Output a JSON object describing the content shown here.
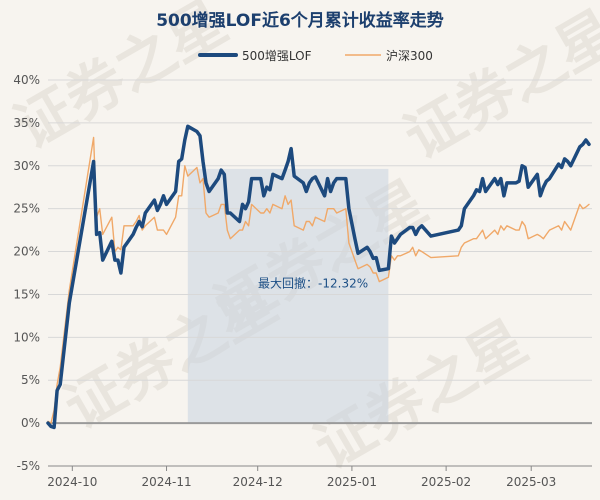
{
  "watermark": "证券之星",
  "chart_data": {
    "type": "line",
    "title": "500增强LOF近6个月累计收益率走势",
    "xlabel": "",
    "ylabel": "",
    "x_ticks": [
      "2024-10",
      "2024-11",
      "2024-12",
      "2025-01",
      "2025-02",
      "2025-03"
    ],
    "y_ticks": [
      "40%",
      "35%",
      "30%",
      "25%",
      "20%",
      "15%",
      "10%",
      "5%",
      "0%",
      "-5%"
    ],
    "ylim": [
      -5,
      40
    ],
    "grid": true,
    "legend_position": "top-center",
    "x_range": [
      "2024-09-23",
      "2025-03-21"
    ],
    "annotation": {
      "text": "最大回撤：-12.32%",
      "shaded_from": "2024-11-08",
      "shaded_to": "2025-01-13"
    },
    "series": [
      {
        "name": "500增强LOF",
        "color": "#1d4a7e",
        "points": [
          [
            "2024-09-23",
            0.0
          ],
          [
            "2024-09-24",
            -0.4
          ],
          [
            "2024-09-25",
            -0.5
          ],
          [
            "2024-09-26",
            3.8
          ],
          [
            "2024-09-27",
            4.5
          ],
          [
            "2024-09-30",
            14.0
          ],
          [
            "2024-10-08",
            30.5
          ],
          [
            "2024-10-09",
            22.0
          ],
          [
            "2024-10-10",
            22.2
          ],
          [
            "2024-10-11",
            19.0
          ],
          [
            "2024-10-14",
            21.2
          ],
          [
            "2024-10-15",
            19.0
          ],
          [
            "2024-10-16",
            19.0
          ],
          [
            "2024-10-17",
            17.5
          ],
          [
            "2024-10-18",
            20.5
          ],
          [
            "2024-10-21",
            22.0
          ],
          [
            "2024-10-22",
            22.8
          ],
          [
            "2024-10-23",
            23.5
          ],
          [
            "2024-10-24",
            22.9
          ],
          [
            "2024-10-25",
            24.5
          ],
          [
            "2024-10-28",
            26.0
          ],
          [
            "2024-10-29",
            24.8
          ],
          [
            "2024-10-30",
            25.5
          ],
          [
            "2024-10-31",
            26.5
          ],
          [
            "2024-11-01",
            25.5
          ],
          [
            "2024-11-04",
            27.0
          ],
          [
            "2024-11-05",
            30.5
          ],
          [
            "2024-11-06",
            30.8
          ],
          [
            "2024-11-07",
            33.0
          ],
          [
            "2024-11-08",
            34.6
          ],
          [
            "2024-11-11",
            34.0
          ],
          [
            "2024-11-12",
            33.5
          ],
          [
            "2024-11-13",
            30.5
          ],
          [
            "2024-11-14",
            28.0
          ],
          [
            "2024-11-15",
            27.0
          ],
          [
            "2024-11-18",
            28.5
          ],
          [
            "2024-11-19",
            29.5
          ],
          [
            "2024-11-20",
            29.0
          ],
          [
            "2024-11-21",
            24.5
          ],
          [
            "2024-11-22",
            24.5
          ],
          [
            "2024-11-25",
            23.5
          ],
          [
            "2024-11-26",
            25.5
          ],
          [
            "2024-11-27",
            25.0
          ],
          [
            "2024-11-28",
            25.8
          ],
          [
            "2024-11-29",
            28.5
          ],
          [
            "2024-12-02",
            28.5
          ],
          [
            "2024-12-03",
            26.5
          ],
          [
            "2024-12-04",
            27.5
          ],
          [
            "2024-12-05",
            27.2
          ],
          [
            "2024-12-06",
            29.0
          ],
          [
            "2024-12-09",
            28.5
          ],
          [
            "2024-12-10",
            29.5
          ],
          [
            "2024-12-11",
            30.5
          ],
          [
            "2024-12-12",
            32.0
          ],
          [
            "2024-12-13",
            28.8
          ],
          [
            "2024-12-16",
            28.0
          ],
          [
            "2024-12-17",
            27.0
          ],
          [
            "2024-12-18",
            28.0
          ],
          [
            "2024-12-19",
            28.5
          ],
          [
            "2024-12-20",
            28.7
          ],
          [
            "2024-12-23",
            26.5
          ],
          [
            "2024-12-24",
            28.5
          ],
          [
            "2024-12-25",
            27.0
          ],
          [
            "2024-12-26",
            28.0
          ],
          [
            "2024-12-27",
            28.5
          ],
          [
            "2024-12-30",
            28.5
          ],
          [
            "2024-12-31",
            25.0
          ],
          [
            "2025-01-02",
            21.5
          ],
          [
            "2025-01-03",
            19.8
          ],
          [
            "2025-01-06",
            20.5
          ],
          [
            "2025-01-07",
            20.0
          ],
          [
            "2025-01-08",
            19.2
          ],
          [
            "2025-01-09",
            19.3
          ],
          [
            "2025-01-10",
            17.8
          ],
          [
            "2025-01-13",
            18.0
          ],
          [
            "2025-01-14",
            21.8
          ],
          [
            "2025-01-15",
            21.0
          ],
          [
            "2025-01-16",
            21.5
          ],
          [
            "2025-01-17",
            22.0
          ],
          [
            "2025-01-20",
            22.8
          ],
          [
            "2025-01-21",
            22.8
          ],
          [
            "2025-01-22",
            22.0
          ],
          [
            "2025-01-23",
            22.7
          ],
          [
            "2025-01-24",
            23.0
          ],
          [
            "2025-01-27",
            21.8
          ],
          [
            "2025-02-05",
            22.5
          ],
          [
            "2025-02-06",
            23.0
          ],
          [
            "2025-02-07",
            25.0
          ],
          [
            "2025-02-10",
            26.5
          ],
          [
            "2025-02-11",
            27.2
          ],
          [
            "2025-02-12",
            27.0
          ],
          [
            "2025-02-13",
            28.5
          ],
          [
            "2025-02-14",
            27.0
          ],
          [
            "2025-02-17",
            28.5
          ],
          [
            "2025-02-18",
            27.8
          ],
          [
            "2025-02-19",
            28.5
          ],
          [
            "2025-02-20",
            26.5
          ],
          [
            "2025-02-21",
            28.0
          ],
          [
            "2025-02-24",
            28.0
          ],
          [
            "2025-02-25",
            28.2
          ],
          [
            "2025-02-26",
            30.0
          ],
          [
            "2025-02-27",
            29.8
          ],
          [
            "2025-02-28",
            27.5
          ],
          [
            "2025-03-03",
            29.0
          ],
          [
            "2025-03-04",
            26.5
          ],
          [
            "2025-03-05",
            27.5
          ],
          [
            "2025-03-06",
            28.2
          ],
          [
            "2025-03-07",
            28.5
          ],
          [
            "2025-03-10",
            30.2
          ],
          [
            "2025-03-11",
            29.8
          ],
          [
            "2025-03-12",
            30.8
          ],
          [
            "2025-03-13",
            30.5
          ],
          [
            "2025-03-14",
            30.0
          ],
          [
            "2025-03-17",
            32.2
          ],
          [
            "2025-03-18",
            32.5
          ],
          [
            "2025-03-19",
            33.0
          ],
          [
            "2025-03-20",
            32.5
          ]
        ]
      },
      {
        "name": "沪深300",
        "color": "#f0a868",
        "points": [
          [
            "2024-09-23",
            0.2
          ],
          [
            "2024-09-24",
            0.0
          ],
          [
            "2024-09-25",
            1.5
          ],
          [
            "2024-09-26",
            4.5
          ],
          [
            "2024-09-27",
            6.5
          ],
          [
            "2024-09-30",
            15.5
          ],
          [
            "2024-10-08",
            33.3
          ],
          [
            "2024-10-09",
            24.0
          ],
          [
            "2024-10-10",
            25.0
          ],
          [
            "2024-10-11",
            22.0
          ],
          [
            "2024-10-14",
            24.0
          ],
          [
            "2024-10-15",
            20.0
          ],
          [
            "2024-10-16",
            20.5
          ],
          [
            "2024-10-17",
            20.2
          ],
          [
            "2024-10-18",
            23.0
          ],
          [
            "2024-10-21",
            23.0
          ],
          [
            "2024-10-22",
            23.5
          ],
          [
            "2024-10-23",
            24.2
          ],
          [
            "2024-10-24",
            22.5
          ],
          [
            "2024-10-25",
            23.0
          ],
          [
            "2024-10-28",
            24.0
          ],
          [
            "2024-10-29",
            22.5
          ],
          [
            "2024-10-30",
            22.5
          ],
          [
            "2024-10-31",
            22.5
          ],
          [
            "2024-11-01",
            22.0
          ],
          [
            "2024-11-04",
            24.0
          ],
          [
            "2024-11-05",
            26.5
          ],
          [
            "2024-11-06",
            26.5
          ],
          [
            "2024-11-07",
            30.0
          ],
          [
            "2024-11-08",
            28.8
          ],
          [
            "2024-11-11",
            29.8
          ],
          [
            "2024-11-12",
            28.0
          ],
          [
            "2024-11-13",
            28.5
          ],
          [
            "2024-11-14",
            24.5
          ],
          [
            "2024-11-15",
            24.0
          ],
          [
            "2024-11-18",
            24.5
          ],
          [
            "2024-11-19",
            25.5
          ],
          [
            "2024-11-20",
            25.5
          ],
          [
            "2024-11-21",
            22.5
          ],
          [
            "2024-11-22",
            21.5
          ],
          [
            "2024-11-25",
            22.5
          ],
          [
            "2024-11-26",
            22.5
          ],
          [
            "2024-11-27",
            23.5
          ],
          [
            "2024-11-28",
            23.0
          ],
          [
            "2024-11-29",
            25.5
          ],
          [
            "2024-12-02",
            24.5
          ],
          [
            "2024-12-03",
            24.5
          ],
          [
            "2024-12-04",
            25.0
          ],
          [
            "2024-12-05",
            24.5
          ],
          [
            "2024-12-06",
            25.5
          ],
          [
            "2024-12-09",
            25.0
          ],
          [
            "2024-12-10",
            26.5
          ],
          [
            "2024-12-11",
            25.5
          ],
          [
            "2024-12-12",
            26.0
          ],
          [
            "2024-12-13",
            23.0
          ],
          [
            "2024-12-16",
            22.5
          ],
          [
            "2024-12-17",
            23.5
          ],
          [
            "2024-12-18",
            23.5
          ],
          [
            "2024-12-19",
            23.0
          ],
          [
            "2024-12-20",
            24.0
          ],
          [
            "2024-12-23",
            23.5
          ],
          [
            "2024-12-24",
            25.0
          ],
          [
            "2024-12-25",
            25.0
          ],
          [
            "2024-12-26",
            25.0
          ],
          [
            "2024-12-27",
            24.5
          ],
          [
            "2024-12-30",
            25.0
          ],
          [
            "2024-12-31",
            21.0
          ],
          [
            "2025-01-02",
            19.0
          ],
          [
            "2025-01-03",
            18.0
          ],
          [
            "2025-01-06",
            18.5
          ],
          [
            "2025-01-07",
            18.2
          ],
          [
            "2025-01-08",
            17.5
          ],
          [
            "2025-01-09",
            17.5
          ],
          [
            "2025-01-10",
            16.5
          ],
          [
            "2025-01-13",
            17.0
          ],
          [
            "2025-01-14",
            19.5
          ],
          [
            "2025-01-15",
            19.0
          ],
          [
            "2025-01-16",
            19.5
          ],
          [
            "2025-01-17",
            19.5
          ],
          [
            "2025-01-20",
            20.0
          ],
          [
            "2025-01-21",
            20.5
          ],
          [
            "2025-01-22",
            19.5
          ],
          [
            "2025-01-23",
            20.2
          ],
          [
            "2025-01-24",
            20.0
          ],
          [
            "2025-01-27",
            19.3
          ],
          [
            "2025-02-05",
            19.5
          ],
          [
            "2025-02-06",
            20.5
          ],
          [
            "2025-02-07",
            21.0
          ],
          [
            "2025-02-10",
            21.5
          ],
          [
            "2025-02-11",
            21.5
          ],
          [
            "2025-02-12",
            22.0
          ],
          [
            "2025-02-13",
            22.5
          ],
          [
            "2025-02-14",
            21.5
          ],
          [
            "2025-02-17",
            22.5
          ],
          [
            "2025-02-18",
            22.0
          ],
          [
            "2025-02-19",
            23.0
          ],
          [
            "2025-02-20",
            22.5
          ],
          [
            "2025-02-21",
            23.0
          ],
          [
            "2025-02-24",
            22.5
          ],
          [
            "2025-02-25",
            22.5
          ],
          [
            "2025-02-26",
            23.5
          ],
          [
            "2025-02-27",
            23.0
          ],
          [
            "2025-02-28",
            21.5
          ],
          [
            "2025-03-03",
            22.0
          ],
          [
            "2025-03-04",
            21.8
          ],
          [
            "2025-03-05",
            21.5
          ],
          [
            "2025-03-06",
            22.0
          ],
          [
            "2025-03-07",
            22.5
          ],
          [
            "2025-03-10",
            23.0
          ],
          [
            "2025-03-11",
            22.5
          ],
          [
            "2025-03-12",
            23.5
          ],
          [
            "2025-03-13",
            23.0
          ],
          [
            "2025-03-14",
            22.5
          ],
          [
            "2025-03-17",
            25.5
          ],
          [
            "2025-03-18",
            25.0
          ],
          [
            "2025-03-19",
            25.2
          ],
          [
            "2025-03-20",
            25.5
          ]
        ]
      }
    ]
  }
}
